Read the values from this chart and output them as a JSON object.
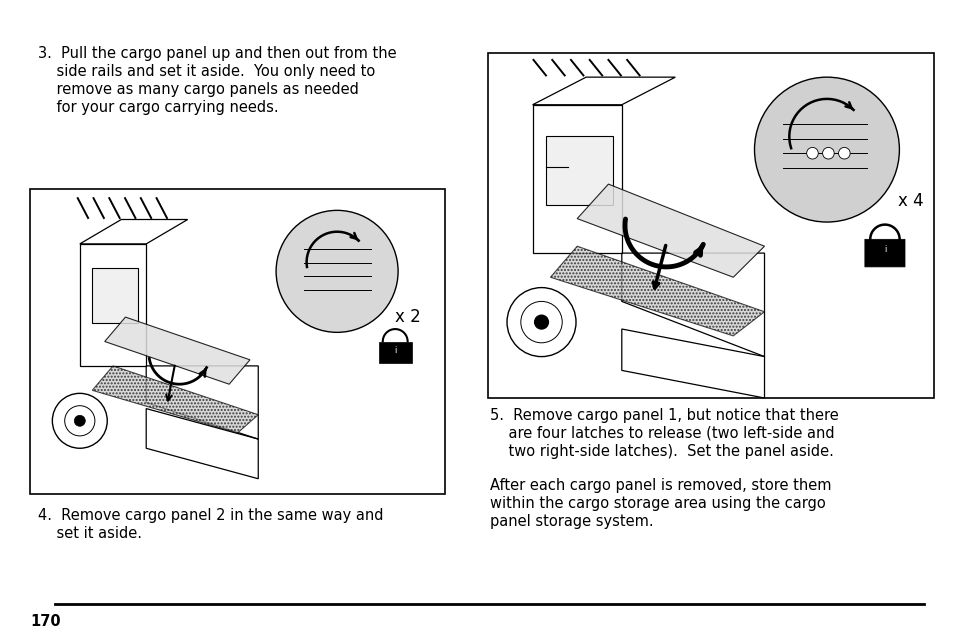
{
  "page_number": "170",
  "bg": "#ffffff",
  "tc": "#000000",
  "step3_lines": [
    "3.  Pull the cargo panel up and then out from the",
    "    side rails and set it aside.  You only need to",
    "    remove as many cargo panels as needed",
    "    for your cargo carrying needs."
  ],
  "step4_lines": [
    "4.  Remove cargo panel 2 in the same way and",
    "    set it aside."
  ],
  "step5_lines": [
    "5.  Remove cargo panel 1, but notice that there",
    "    are four latches to release (two left-side and",
    "    two right-side latches).  Set the panel aside."
  ],
  "after_lines": [
    "After each cargo panel is removed, store them",
    "within the cargo storage area using the cargo",
    "panel storage system."
  ],
  "x2": "x 2",
  "x4": "x 4",
  "fs": 10.5,
  "lh": 0.048
}
